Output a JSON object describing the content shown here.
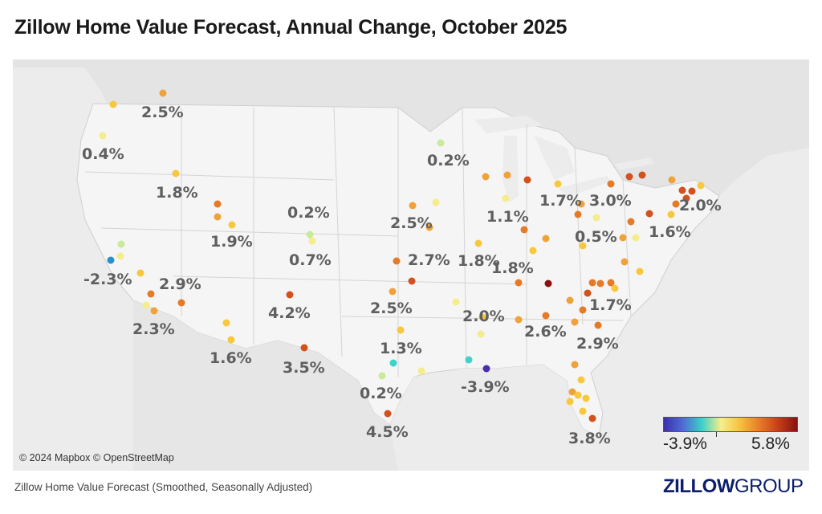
{
  "title": "Zillow Home Value Forecast, Annual Change, October 2025",
  "attribution": "© 2024 Mapbox © OpenStreetMap",
  "footer": "Zillow Home Value Forecast (Smoothed, Seasonally Adjusted)",
  "logo": {
    "bold": "ZILLOW",
    "light": "GROUP"
  },
  "legend": {
    "min_label": "-3.9%",
    "max_label": "5.8%",
    "colors": [
      "#3b2fb0",
      "#4f6bd6",
      "#3ad1c9",
      "#f6ef8a",
      "#f7c23a",
      "#ea7c25",
      "#c73e18",
      "#8a0f0f"
    ]
  },
  "colors": {
    "c_veryneg": "#4a2fb3",
    "c_neg": "#2a8fd0",
    "c_teal": "#3ed3c6",
    "c_green": "#c8eb9a",
    "c_paleyellow": "#f5ec8c",
    "c_yellow": "#f7c83d",
    "c_orange": "#f0a23a",
    "c_darkorange": "#e57a27",
    "c_red": "#d2511c",
    "c_darkred": "#8b1111"
  },
  "labels": [
    {
      "text": "2.5%"
    },
    {
      "text": "0.4%"
    },
    {
      "text": "1.8%"
    },
    {
      "text": "1.9%"
    },
    {
      "text": "0.2%"
    },
    {
      "text": "0.7%"
    },
    {
      "text": "-2.3%"
    },
    {
      "text": "2.9%"
    },
    {
      "text": "2.3%"
    },
    {
      "text": "4.2%"
    },
    {
      "text": "1.6%"
    },
    {
      "text": "3.5%"
    },
    {
      "text": "0.2%"
    },
    {
      "text": "2.5%"
    },
    {
      "text": "2.7%"
    },
    {
      "text": "2.5%"
    },
    {
      "text": "1.3%"
    },
    {
      "text": "0.2%"
    },
    {
      "text": "4.5%"
    },
    {
      "text": "1.1%"
    },
    {
      "text": "1.8%"
    },
    {
      "text": "1.8%"
    },
    {
      "text": "2.0%"
    },
    {
      "text": "-3.9%"
    },
    {
      "text": "1.7%"
    },
    {
      "text": "3.0%"
    },
    {
      "text": "2.0%"
    },
    {
      "text": "0.5%"
    },
    {
      "text": "1.6%"
    },
    {
      "text": "1.7%"
    },
    {
      "text": "2.6%"
    },
    {
      "text": "2.9%"
    },
    {
      "text": "3.8%"
    }
  ]
}
